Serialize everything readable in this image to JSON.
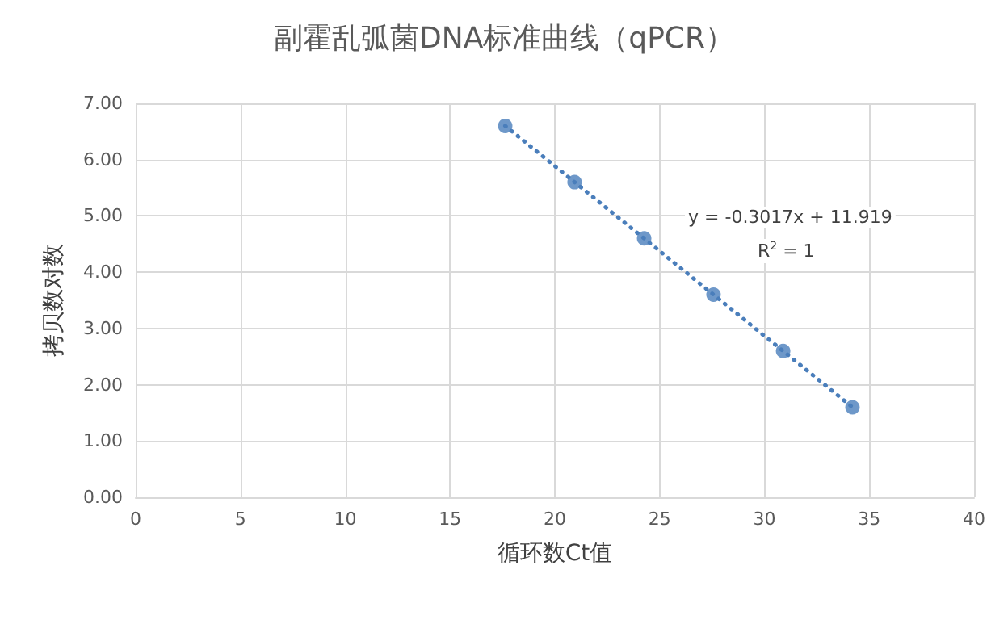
{
  "chart_data": {
    "type": "scatter",
    "title": "副霍乱弧菌DNA标准曲线（qPCR）",
    "xlabel": "循环数Ct值",
    "ylabel": "拷贝数对数",
    "annotations": [
      "y = -0.3017x + 11.919",
      "R$^{2}$ = 1"
    ],
    "series": [
      {
        "color": "#4a7ebb",
        "marker": "circle",
        "x": [
          17.63,
          20.94,
          24.26,
          27.57,
          30.89,
          34.2
        ],
        "values": [
          6.6,
          5.6,
          4.6,
          3.6,
          2.6,
          1.6
        ]
      },
      {
        "type": "line",
        "color": "#4a7ebb",
        "marker": "none",
        "line_style": "dotted",
        "x": [
          17.63,
          34.2
        ],
        "values": [
          6.6,
          1.6
        ]
      }
    ],
    "xlim": [
      0,
      40
    ],
    "xticks": [
      0,
      5,
      10,
      15,
      20,
      25,
      30,
      35,
      40
    ],
    "ylim": [
      0,
      7
    ],
    "yticks": [
      {
        "value": 0,
        "label": "0.00"
      },
      {
        "value": 1,
        "label": "1.00"
      },
      {
        "value": 2,
        "label": "2.00"
      },
      {
        "value": 3,
        "label": "3.00"
      },
      {
        "value": 4,
        "label": "4.00"
      },
      {
        "value": 5,
        "label": "5.00"
      },
      {
        "value": 6,
        "label": "6.00"
      },
      {
        "value": 7,
        "label": "7.00"
      }
    ],
    "grid": true
  }
}
